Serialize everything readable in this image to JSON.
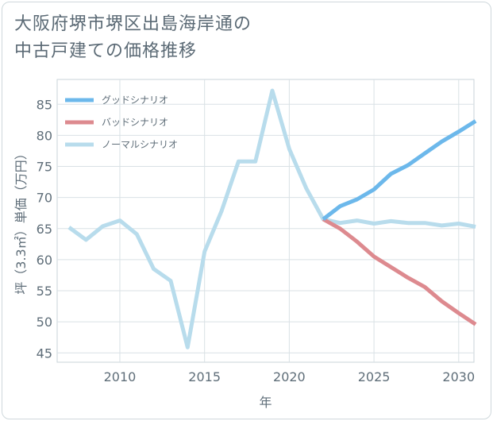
{
  "title_lines": [
    "大阪府堺市堺区出島海岸通の",
    "中古戸建ての価格推移"
  ],
  "chart_data": {
    "type": "line",
    "title": "大阪府堺市堺区出島海岸通の中古戸建ての価格推移",
    "xlabel": "年",
    "ylabel": "坪（3.3㎡）単価（万円）",
    "xlim": [
      2006.3,
      2030.9
    ],
    "ylim": [
      43.5,
      89
    ],
    "xticks": [
      2010,
      2015,
      2020,
      2025,
      2030
    ],
    "yticks": [
      45,
      50,
      55,
      60,
      65,
      70,
      75,
      80,
      85
    ],
    "grid": true,
    "legend_position": "top-left",
    "series": [
      {
        "name": "グッドシナリオ",
        "color": "#6cb8eb",
        "x": [
          2022,
          2023,
          2024,
          2025,
          2026,
          2027,
          2028,
          2029,
          2030,
          2031
        ],
        "y": [
          66.5,
          68.6,
          69.7,
          71.3,
          73.8,
          75.2,
          77.1,
          79.0,
          80.6,
          82.3
        ]
      },
      {
        "name": "バッドシナリオ",
        "color": "#dd8a8f",
        "x": [
          2022,
          2023,
          2024,
          2025,
          2026,
          2027,
          2028,
          2029,
          2030,
          2031
        ],
        "y": [
          66.5,
          65.0,
          62.9,
          60.5,
          58.8,
          57.1,
          55.6,
          53.3,
          51.4,
          49.6
        ]
      },
      {
        "name": "ノーマルシナリオ",
        "color": "#b8dcec",
        "x": [
          2007,
          2008,
          2009,
          2010,
          2011,
          2012,
          2013,
          2014,
          2015,
          2016,
          2017,
          2018,
          2019,
          2020,
          2021,
          2022,
          2023,
          2024,
          2025,
          2026,
          2027,
          2028,
          2029,
          2030,
          2031
        ],
        "y": [
          65.2,
          63.2,
          65.4,
          66.3,
          64.1,
          58.5,
          56.6,
          45.9,
          61.3,
          67.8,
          75.8,
          75.8,
          87.2,
          77.8,
          71.5,
          66.5,
          65.9,
          66.3,
          65.8,
          66.2,
          65.9,
          65.9,
          65.5,
          65.8,
          65.3
        ]
      }
    ]
  }
}
